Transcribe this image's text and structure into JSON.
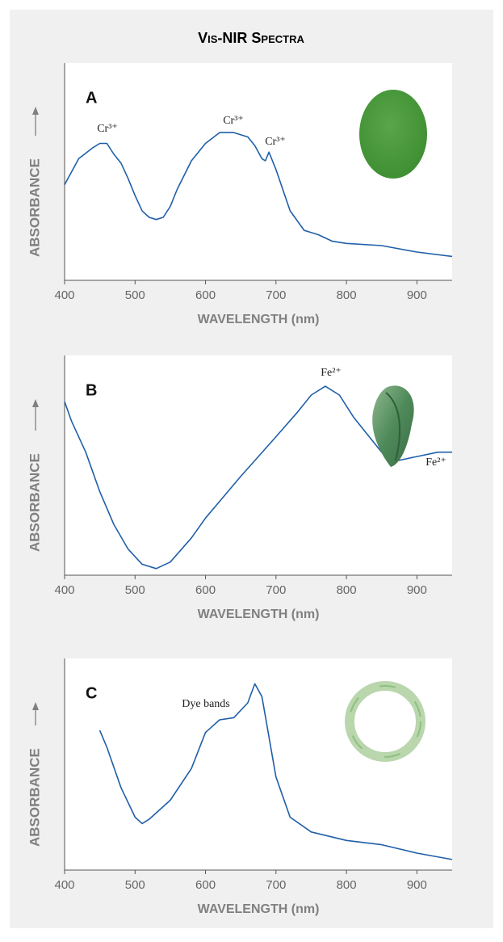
{
  "title": "Vis-NIR Spectra",
  "chart_data": [
    {
      "type": "line",
      "label": "A",
      "xlabel": "WAVELENGTH (nm)",
      "ylabel": "ABSORBANCE",
      "color": "#1f5fa8",
      "xlim": [
        400,
        950
      ],
      "xticks": [
        400,
        500,
        600,
        700,
        800,
        900
      ],
      "ylim": [
        0,
        1
      ],
      "x": [
        400,
        420,
        440,
        450,
        460,
        470,
        480,
        490,
        500,
        510,
        520,
        530,
        540,
        550,
        560,
        580,
        600,
        620,
        640,
        660,
        670,
        680,
        685,
        690,
        700,
        720,
        740,
        760,
        780,
        800,
        850,
        900,
        950
      ],
      "values": [
        0.44,
        0.56,
        0.61,
        0.63,
        0.63,
        0.58,
        0.54,
        0.47,
        0.39,
        0.32,
        0.29,
        0.28,
        0.29,
        0.34,
        0.42,
        0.55,
        0.63,
        0.68,
        0.68,
        0.66,
        0.62,
        0.56,
        0.55,
        0.59,
        0.51,
        0.32,
        0.23,
        0.21,
        0.18,
        0.17,
        0.16,
        0.13,
        0.11
      ],
      "annotations": [
        "Cr³⁺",
        "Cr³⁺",
        "Cr³⁺"
      ]
    },
    {
      "type": "line",
      "label": "B",
      "xlabel": "WAVELENGTH (nm)",
      "ylabel": "ABSORBANCE",
      "color": "#1f5fa8",
      "xlim": [
        400,
        950
      ],
      "xticks": [
        400,
        500,
        600,
        700,
        800,
        900
      ],
      "ylim": [
        0,
        1
      ],
      "x": [
        400,
        410,
        430,
        450,
        470,
        490,
        510,
        530,
        550,
        580,
        600,
        650,
        700,
        730,
        750,
        770,
        790,
        810,
        850,
        870,
        900,
        930,
        950
      ],
      "values": [
        0.79,
        0.7,
        0.56,
        0.38,
        0.23,
        0.12,
        0.05,
        0.03,
        0.06,
        0.17,
        0.26,
        0.45,
        0.63,
        0.74,
        0.82,
        0.86,
        0.82,
        0.72,
        0.56,
        0.52,
        0.54,
        0.56,
        0.56
      ],
      "annotations": [
        "Fe²⁺",
        "Fe²⁺"
      ]
    },
    {
      "type": "line",
      "label": "C",
      "xlabel": "WAVELENGTH (nm)",
      "ylabel": "ABSORBANCE",
      "color": "#1f5fa8",
      "xlim": [
        400,
        950
      ],
      "xticks": [
        400,
        500,
        600,
        700,
        800,
        900
      ],
      "ylim": [
        0,
        1
      ],
      "x": [
        450,
        460,
        480,
        500,
        510,
        520,
        550,
        580,
        600,
        620,
        640,
        660,
        670,
        680,
        700,
        720,
        750,
        800,
        850,
        900,
        950
      ],
      "values": [
        0.66,
        0.58,
        0.39,
        0.25,
        0.22,
        0.24,
        0.33,
        0.48,
        0.65,
        0.71,
        0.72,
        0.79,
        0.88,
        0.82,
        0.44,
        0.25,
        0.18,
        0.14,
        0.12,
        0.08,
        0.05
      ],
      "annotations": [
        "Dye bands"
      ]
    }
  ]
}
